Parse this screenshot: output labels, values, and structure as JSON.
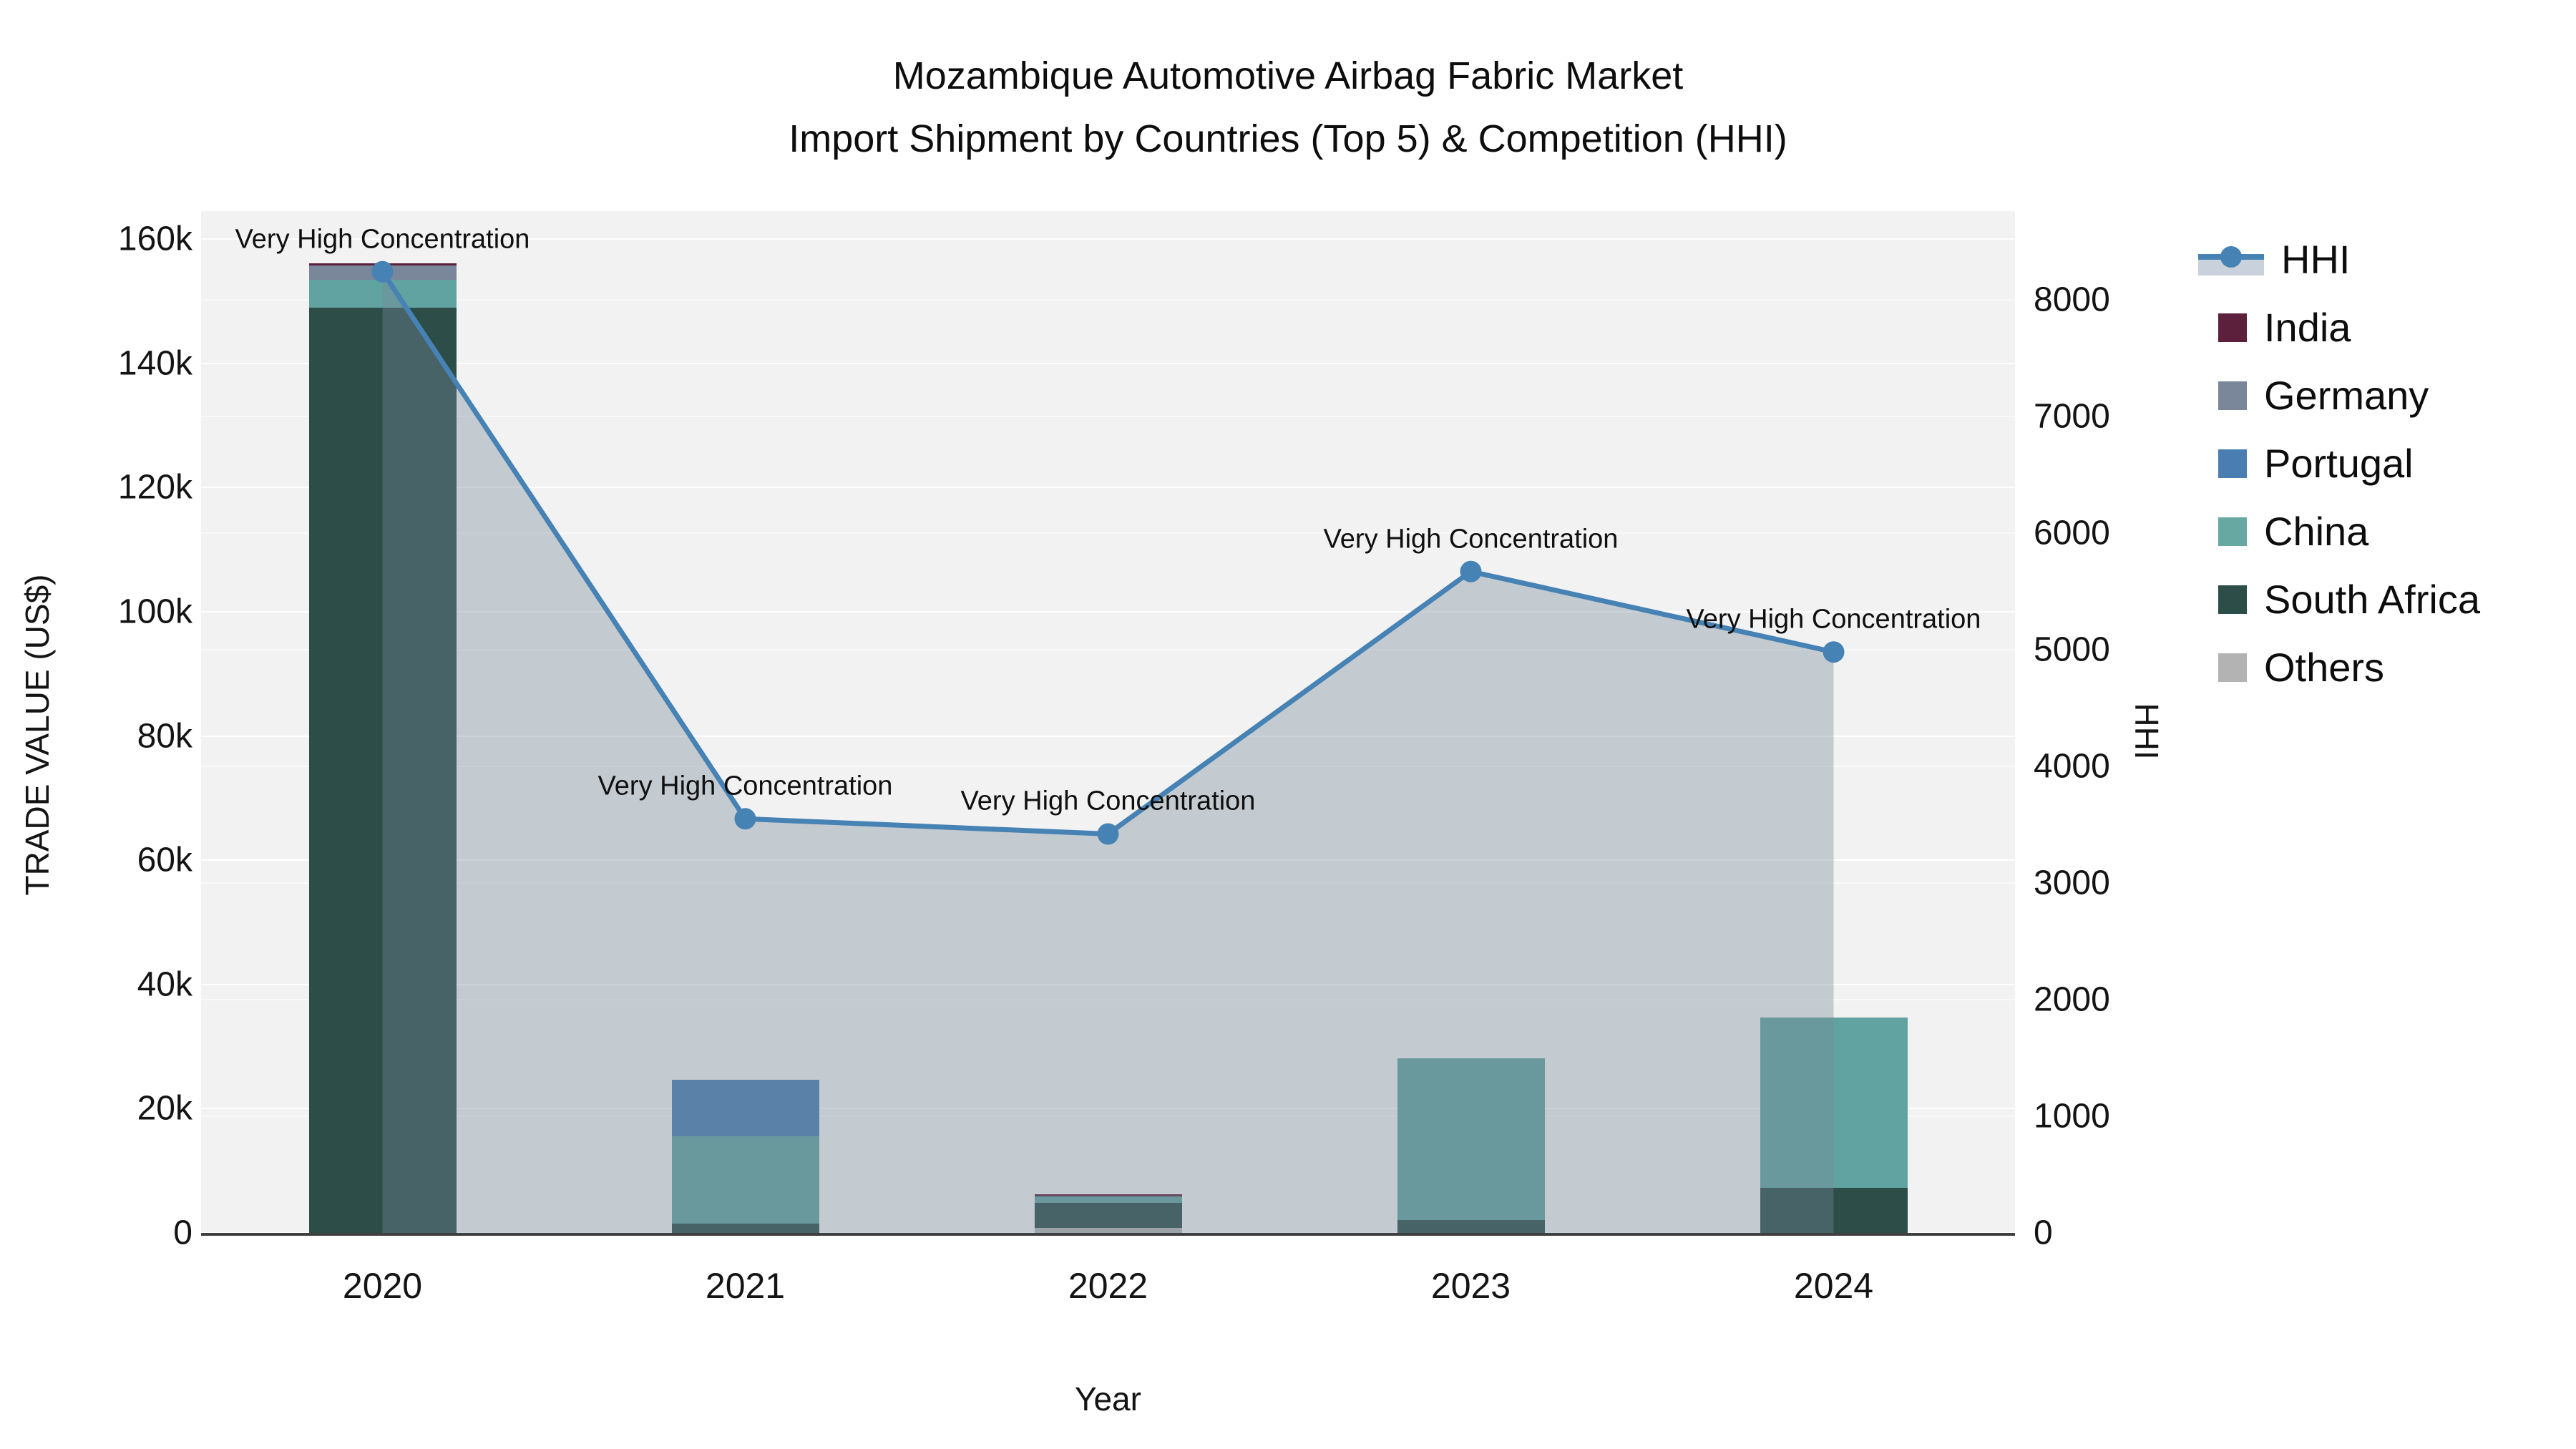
{
  "title": {
    "line1": "Mozambique Automotive Airbag Fabric Market",
    "line2": "Import Shipment by Countries (Top 5) & Competition (HHI)"
  },
  "colors": {
    "plot_background": "#f2f2f2",
    "gridline": "#ffffff",
    "axis_line": "#3f3f3f",
    "hhi_line": "#4682b4",
    "hhi_area_fill": "rgba(119,136,153,0.38)",
    "hhi_legend_fill": "#c9d2dc",
    "india": "#5c1f3c",
    "germany": "#7a8699",
    "portugal": "#4a7eb2",
    "china": "#61a3a1",
    "south_africa": "#2d4d49",
    "others": "#b3b3b3"
  },
  "chart_data": {
    "type": "bar+line",
    "title": "Mozambique Automotive Airbag Fabric Market Import Shipment by Countries (Top 5) & Competition (HHI)",
    "categories": [
      "2020",
      "2021",
      "2022",
      "2023",
      "2024"
    ],
    "stack_order": "bottom-up",
    "bar_series": [
      {
        "name": "Others",
        "color": "#b3b3b3",
        "values": [
          0,
          0,
          800,
          0,
          0
        ]
      },
      {
        "name": "South Africa",
        "color": "#2d4d49",
        "values": [
          149000,
          1500,
          4000,
          2100,
          7300
        ]
      },
      {
        "name": "China",
        "color": "#61a3a1",
        "values": [
          4400,
          14100,
          1050,
          26000,
          27400
        ]
      },
      {
        "name": "Portugal",
        "color": "#4a7eb2",
        "values": [
          0,
          9000,
          0,
          0,
          0
        ]
      },
      {
        "name": "Germany",
        "color": "#7a8699",
        "values": [
          2300,
          0,
          0,
          0,
          0
        ]
      },
      {
        "name": "India",
        "color": "#5c1f3c",
        "values": [
          350,
          0,
          350,
          0,
          0
        ]
      }
    ],
    "line_series": {
      "name": "HHI",
      "color": "#4682b4",
      "area_fill": "rgba(119,136,153,0.38)",
      "values": [
        8240,
        3550,
        3420,
        5670,
        4980
      ]
    },
    "annotations": [
      {
        "category": "2020",
        "text": "Very High Concentration"
      },
      {
        "category": "2021",
        "text": "Very High Concentration"
      },
      {
        "category": "2022",
        "text": "Very High Concentration"
      },
      {
        "category": "2023",
        "text": "Very High Concentration"
      },
      {
        "category": "2024",
        "text": "Very High Concentration"
      },
      {
        "category": "2024",
        "text": "Very High Concentration"
      }
    ],
    "left_axis": {
      "title": "TRADE VALUE (US$)",
      "tick_labels": [
        "0",
        "20k",
        "40k",
        "60k",
        "80k",
        "100k",
        "120k",
        "140k",
        "160k"
      ],
      "tick_values": [
        0,
        20000,
        40000,
        60000,
        80000,
        100000,
        120000,
        140000,
        160000
      ],
      "range": [
        0,
        164500
      ]
    },
    "right_axis": {
      "title": "HHI",
      "tick_labels": [
        "0",
        "1000",
        "2000",
        "3000",
        "4000",
        "5000",
        "6000",
        "7000",
        "8000"
      ],
      "tick_values": [
        0,
        1000,
        2000,
        3000,
        4000,
        5000,
        6000,
        7000,
        8000
      ],
      "range": [
        0,
        8760
      ]
    },
    "x_axis": {
      "title": "Year",
      "labels": [
        "2020",
        "2021",
        "2022",
        "2023",
        "2024"
      ]
    },
    "grid": true,
    "legend_position": "right"
  },
  "legend": {
    "items": [
      {
        "label": "HHI",
        "type": "line",
        "color": "#4682b4"
      },
      {
        "label": "India",
        "type": "box",
        "color": "#5c1f3c"
      },
      {
        "label": "Germany",
        "type": "box",
        "color": "#7a8699"
      },
      {
        "label": "Portugal",
        "type": "box",
        "color": "#4a7eb2"
      },
      {
        "label": "China",
        "type": "box",
        "color": "#67a8a3"
      },
      {
        "label": "South Africa",
        "type": "box",
        "color": "#2d4d49"
      },
      {
        "label": "Others",
        "type": "box",
        "color": "#b3b3b3"
      }
    ]
  }
}
